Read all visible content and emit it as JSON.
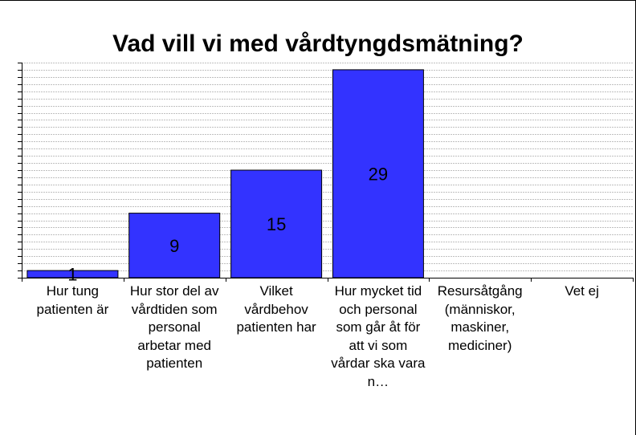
{
  "chart_data": {
    "type": "bar",
    "title": "Vad vill vi med vårdtyngdsmätning?",
    "categories": [
      "Hur tung patienten är",
      "Hur stor del av vårdtiden som personal arbetar med patienten",
      "Vilket vårdbehov patienten har",
      "Hur mycket tid och personal som går åt för att vi som vårdar ska vara n…",
      "Resursåtgång (människor, maskiner, mediciner)",
      "Vet ej"
    ],
    "values": [
      1,
      9,
      15,
      29,
      0,
      0
    ],
    "data_labels": [
      "1",
      "9",
      "15",
      "29",
      "",
      ""
    ],
    "ylim": [
      0,
      30
    ],
    "y_tick_count": 30,
    "xlabel": "",
    "ylabel": "",
    "grid": true,
    "colors": {
      "bar": "#3333ff",
      "bar_border": "#000000",
      "grid": "#c0c0c0",
      "axis": "#000000"
    }
  }
}
